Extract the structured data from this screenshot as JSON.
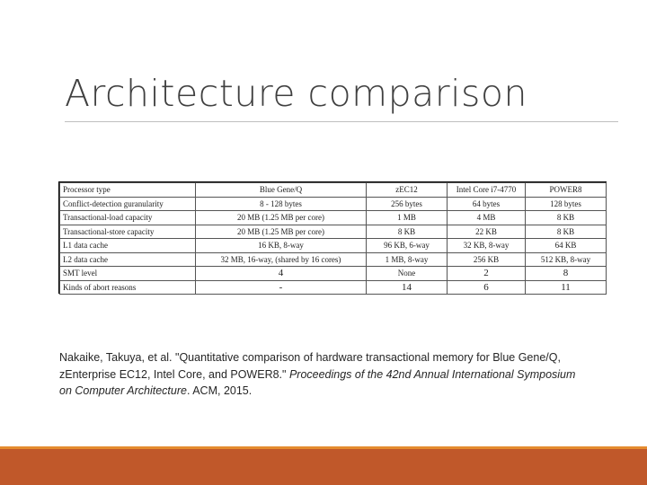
{
  "slide": {
    "title": "Architecture comparison"
  },
  "table": {
    "headers": [
      "Processor type",
      "Blue Gene/Q",
      "zEC12",
      "Intel Core i7-4770",
      "POWER8"
    ],
    "rows": [
      [
        "Conflict-detection guranularity",
        "8 - 128 bytes",
        "256 bytes",
        "64 bytes",
        "128 bytes"
      ],
      [
        "Transactional-load capacity",
        "20 MB (1.25 MB per core)",
        "1 MB",
        "4 MB",
        "8 KB"
      ],
      [
        "Transactional-store capacity",
        "20 MB (1.25 MB per core)",
        "8 KB",
        "22 KB",
        "8 KB"
      ],
      [
        "L1 data cache",
        "16 KB, 8-way",
        "96 KB, 6-way",
        "32 KB, 8-way",
        "64 KB"
      ],
      [
        "L2 data cache",
        "32 MB, 16-way, (shared by 16 cores)",
        "1 MB, 8-way",
        "256 KB",
        "512 KB, 8-way"
      ],
      [
        "SMT level",
        "4",
        "None",
        "2",
        "8"
      ],
      [
        "Kinds of abort reasons",
        "-",
        "14",
        "6",
        "11"
      ]
    ]
  },
  "citation": {
    "authors": "Nakaike, Takuya, et al. \"Quantitative comparison of hardware transactional memory for Blue Gene/Q, zEnterprise EC12, Intel Core, and POWER8.\" ",
    "venue": "Proceedings of the 42nd Annual International Symposium on Computer Architecture",
    "tail": ". ACM, 2015."
  },
  "colors": {
    "footer": "#c0582a",
    "footer_accent": "#e58b2f",
    "title": "#404040"
  }
}
